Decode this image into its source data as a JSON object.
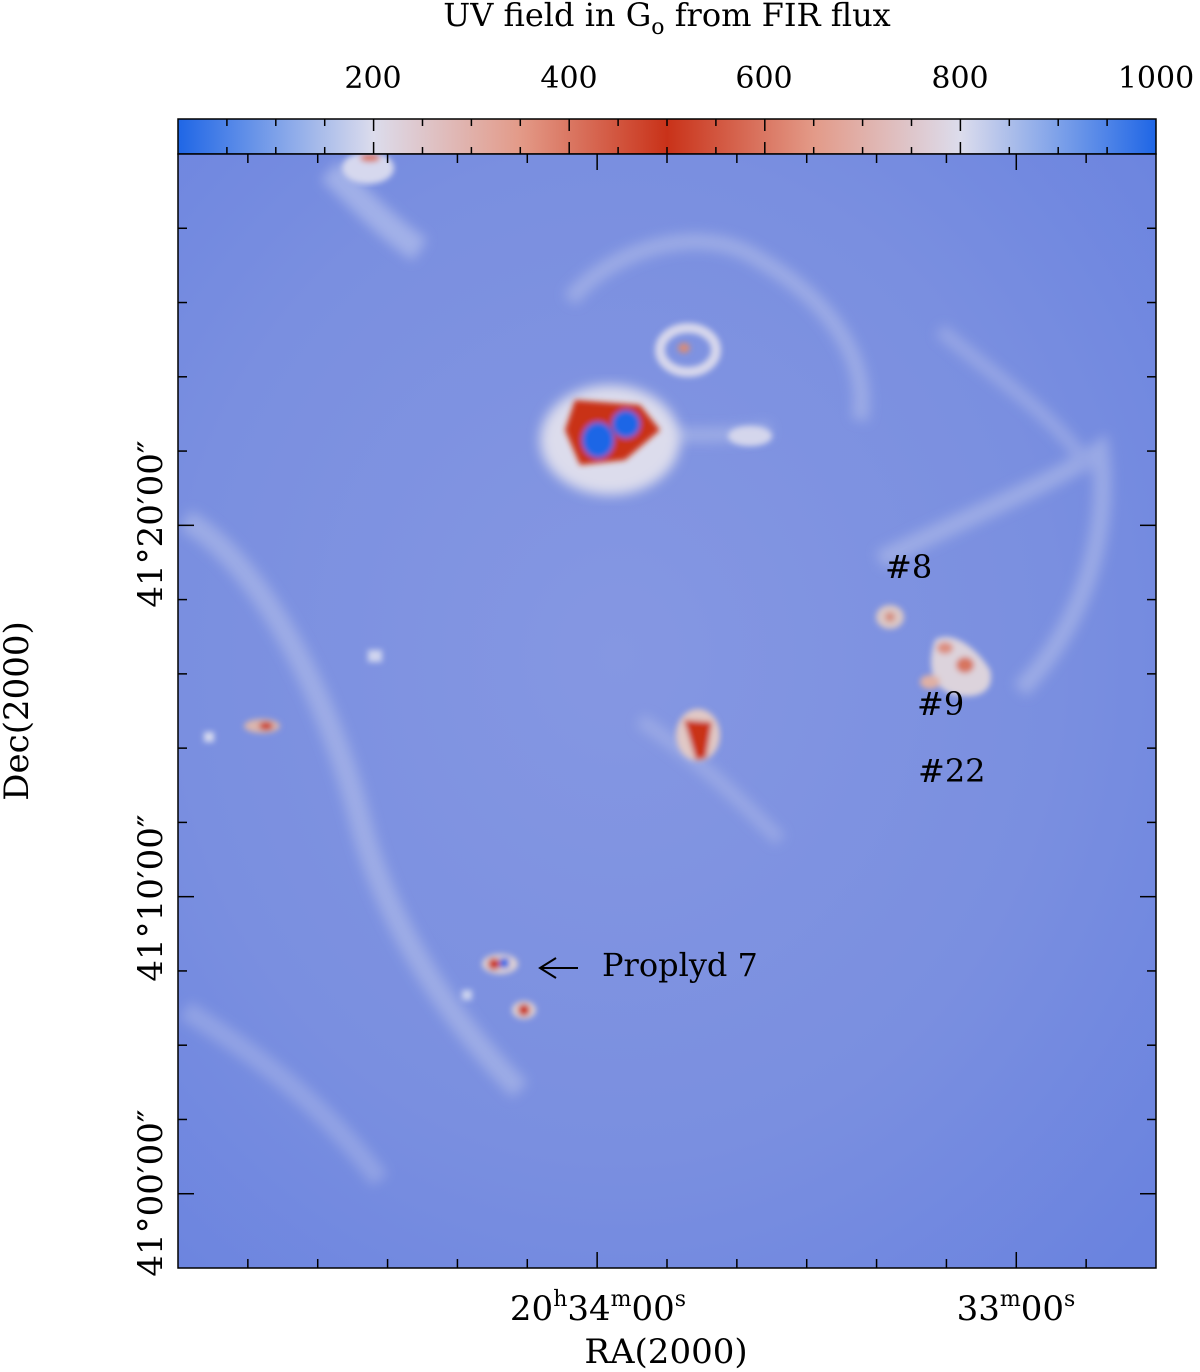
{
  "colorbar": {
    "title": "UV field in G",
    "title_subscript": "o",
    "title_suffix": " from FIR flux",
    "ticks": [
      "200",
      "400",
      "600",
      "800",
      "1000"
    ],
    "range": [
      0,
      1000
    ],
    "colors": {
      "low": "#1f66e6",
      "mid_low": "#dcdcec",
      "peak": "#c93219",
      "mid_high": "#dcdcec",
      "high": "#1f66e6"
    }
  },
  "axes": {
    "xlabel": "RA(2000)",
    "ylabel": "Dec(2000)",
    "x_ticks": [
      {
        "h": "20",
        "hsup": "h",
        "m": "34",
        "msup": "m",
        "s": "00",
        "ssup": "s"
      },
      {
        "m": "33",
        "msup": "m",
        "s": "00",
        "ssup": "s"
      }
    ],
    "y_ticks": [
      "41°00′00″",
      "41°10′00″",
      "41°20′00″"
    ]
  },
  "annotations": {
    "source_8": "#8",
    "source_9": "#9",
    "source_22": "#22",
    "proplyd": "Proplyd 7"
  },
  "map": {
    "background_color": "#6f88e0",
    "features": [
      "bright compact source (top center)",
      "compact source (center)",
      "compact source pair (bottom left)",
      "filamentary shell (right)"
    ]
  }
}
